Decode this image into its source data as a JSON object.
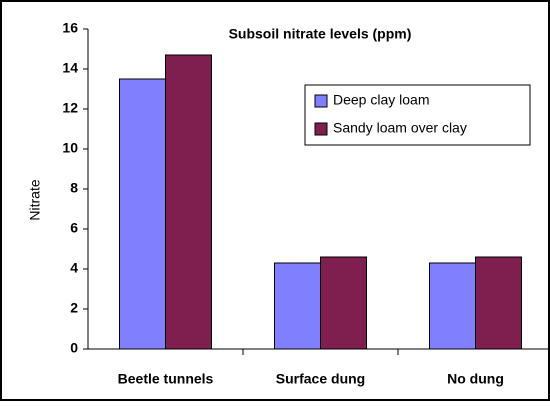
{
  "chart_data": {
    "type": "bar",
    "title": "Subsoil nitrate levels (ppm)",
    "y_label": "Nitrate",
    "categories": [
      "Beetle tunnels",
      "Surface dung",
      "No dung"
    ],
    "series": [
      {
        "name": "Deep clay loam",
        "color": "#8080ff",
        "values": [
          13.5,
          4.3,
          4.3
        ]
      },
      {
        "name": "Sandy loam over clay",
        "color": "#7f1f4f",
        "values": [
          14.7,
          4.6,
          4.6
        ]
      }
    ],
    "ylim": [
      0,
      16
    ],
    "yticks": [
      0,
      2,
      4,
      6,
      8,
      10,
      12,
      14,
      16
    ],
    "grid": false,
    "legend": "upper right"
  }
}
